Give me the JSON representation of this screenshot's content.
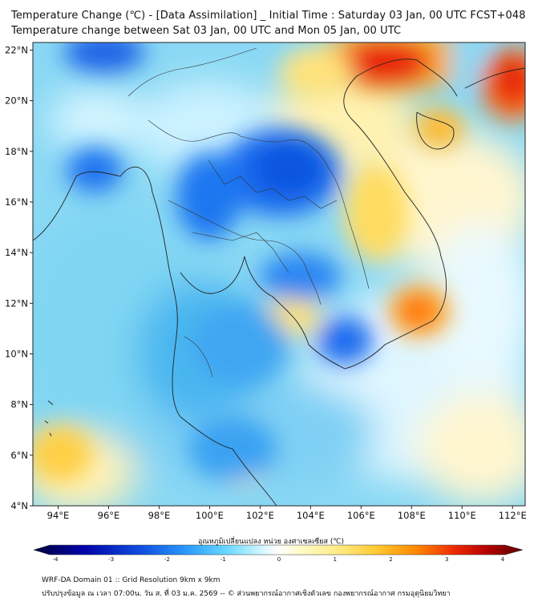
{
  "title": {
    "line1": "Temperature Change (℃) - [Data Assimilation] _ Initial Time : Saturday 03 Jan, 00 UTC FCST+048",
    "line2": "Temperature change between Sat 03 Jan, 00 UTC and Mon 05 Jan, 00 UTC"
  },
  "map": {
    "lat_labels": [
      "22°N",
      "20°N",
      "18°N",
      "16°N",
      "14°N",
      "12°N",
      "10°N",
      "8°N",
      "6°N",
      "4°N"
    ],
    "lon_labels": [
      "94°E",
      "96°E",
      "98°E",
      "100°E",
      "102°E",
      "104°E",
      "106°E",
      "108°E",
      "110°E",
      "112°E"
    ],
    "lat_values": [
      22,
      20,
      18,
      16,
      14,
      12,
      10,
      8,
      6,
      4
    ],
    "lon_values": [
      94,
      96,
      98,
      100,
      102,
      104,
      106,
      108,
      110,
      112
    ],
    "extent": {
      "lon_min": 93.0,
      "lon_max": 112.5,
      "lat_min": 4.0,
      "lat_max": 22.3
    }
  },
  "colorbar": {
    "title": "อุณหภูมิเปลี่ยนแปลง หน่วย องศาเซลเซียส (℃)",
    "tick_labels": [
      "-4",
      "-3",
      "-2",
      "-1",
      "0",
      "1",
      "2",
      "3",
      "4"
    ],
    "range": [
      -4,
      4
    ],
    "colors": [
      "#000066",
      "#0000aa",
      "#0033cc",
      "#1a66ff",
      "#3399ff",
      "#33ccff",
      "#80e5ff",
      "#ccf5ff",
      "#ffffff",
      "#ffffcc",
      "#ffee99",
      "#ffdd55",
      "#ffbb22",
      "#ff8800",
      "#ee3300",
      "#aa0000",
      "#660000"
    ]
  },
  "footer": {
    "line1": "WRF-DA Domain 01 :: Grid Resolution 9km x 9km",
    "line2": "ปรับปรุงข้อมูล ณ เวลา 07:00น. วัน ส. ที่ 03 ม.ค. 2569 -- © ส่วนพยากรณ์อากาศเชิงตัวเลข กองพยากรณ์อากาศ กรมอุตุนิยมวิทยา"
  },
  "anomalies": [
    {
      "name": "red-north-east",
      "lon": 107.5,
      "lat": 22.0,
      "value": 3.3
    },
    {
      "name": "red-east",
      "lon": 112.0,
      "lat": 20.8,
      "value": 3.0
    },
    {
      "name": "orange-gulf",
      "lon": 108.5,
      "lat": 11.7,
      "value": 2.5
    },
    {
      "name": "orange-hainan",
      "lon": 109.0,
      "lat": 18.6,
      "value": 1.8
    },
    {
      "name": "yellow-laos-east",
      "lon": 107.0,
      "lat": 15.0,
      "value": 1.5
    },
    {
      "name": "yellow-west",
      "lon": 94.2,
      "lat": 5.9,
      "value": 1.6
    },
    {
      "name": "yellow-north",
      "lon": 104.0,
      "lat": 21.2,
      "value": 1.4
    },
    {
      "name": "blue-thailand-ne",
      "lon": 103.0,
      "lat": 17.0,
      "value": -2.4
    },
    {
      "name": "blue-thailand-n",
      "lon": 100.3,
      "lat": 16.0,
      "value": -2.2
    },
    {
      "name": "blue-myanmar",
      "lon": 95.6,
      "lat": 17.1,
      "value": -2.2
    },
    {
      "name": "blue-mekong",
      "lon": 105.5,
      "lat": 10.3,
      "value": -2.4
    },
    {
      "name": "blue-cambodia",
      "lon": 103.3,
      "lat": 13.0,
      "value": -1.8
    },
    {
      "name": "blue-north-top",
      "lon": 96.5,
      "lat": 22.1,
      "value": -2.0
    },
    {
      "name": "blue-south",
      "lon": 101.0,
      "lat": 6.3,
      "value": -1.5
    }
  ]
}
